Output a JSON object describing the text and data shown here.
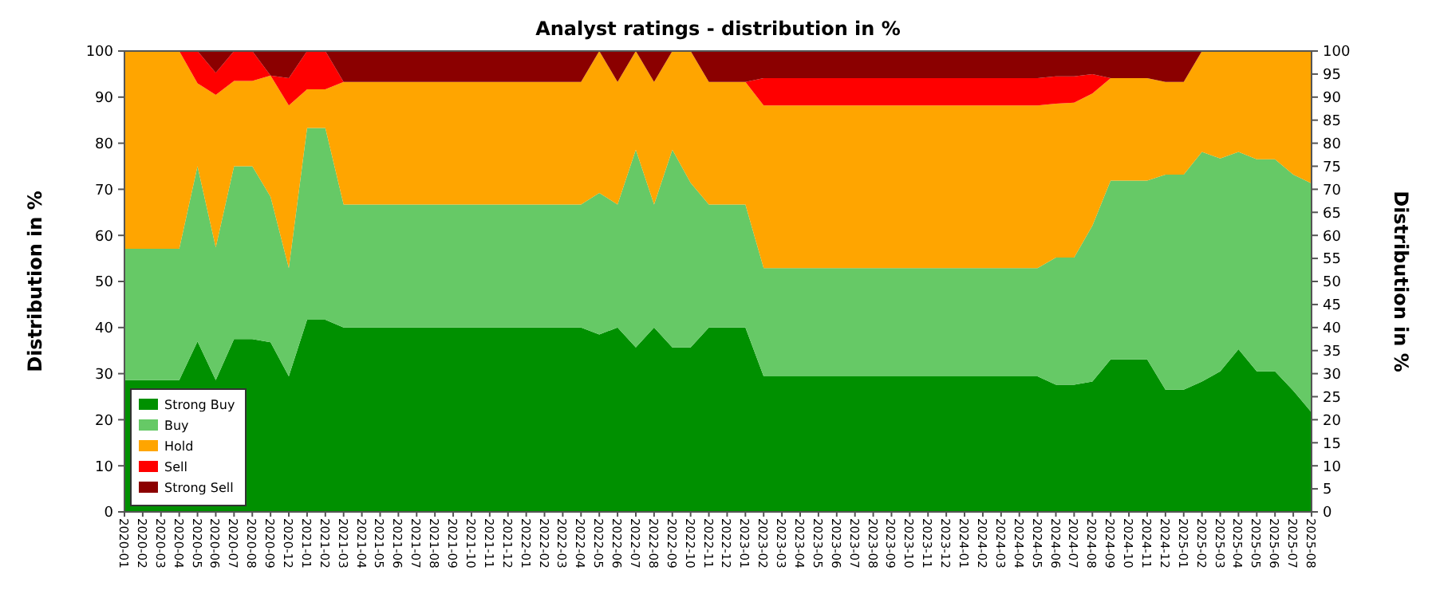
{
  "chart_data": {
    "type": "area",
    "stacked": true,
    "title": "Analyst ratings - distribution in %",
    "ylabel": "Distribution in %",
    "y2label": "Distribution in %",
    "categories": [
      "2020-01",
      "2020-02",
      "2020-03",
      "2020-04",
      "2020-05",
      "2020-06",
      "2020-07",
      "2020-08",
      "2020-09",
      "2020-12",
      "2021-01",
      "2021-02",
      "2021-03",
      "2021-04",
      "2021-05",
      "2021-06",
      "2021-07",
      "2021-08",
      "2021-09",
      "2021-10",
      "2021-11",
      "2021-12",
      "2022-01",
      "2022-02",
      "2022-03",
      "2022-04",
      "2022-05",
      "2022-06",
      "2022-07",
      "2022-08",
      "2022-09",
      "2022-10",
      "2022-11",
      "2022-12",
      "2023-01",
      "2023-02",
      "2023-03",
      "2023-04",
      "2023-05",
      "2023-06",
      "2023-07",
      "2023-08",
      "2023-09",
      "2023-10",
      "2023-11",
      "2023-12",
      "2024-01",
      "2024-02",
      "2024-03",
      "2024-04",
      "2024-05",
      "2024-06",
      "2024-07",
      "2024-08",
      "2024-09",
      "2024-10",
      "2024-11",
      "2024-12",
      "2025-01",
      "2025-02",
      "2025-03",
      "2025-04",
      "2025-05",
      "2025-06",
      "2025-07",
      "2025-08"
    ],
    "series": [
      {
        "name": "Strong Buy",
        "color": "#009000",
        "values": [
          28.6,
          28.6,
          28.6,
          28.6,
          37,
          28.6,
          37.5,
          37.5,
          36.8,
          29.4,
          41.7,
          41.7,
          40,
          40,
          40,
          40,
          40,
          40,
          40,
          40,
          40,
          40,
          40,
          40,
          40,
          40,
          38.5,
          40,
          35.7,
          40,
          35.7,
          35.7,
          40,
          40,
          40,
          29.4,
          29.4,
          29.4,
          29.4,
          29.4,
          29.4,
          29.4,
          29.4,
          29.4,
          29.4,
          29.4,
          29.4,
          29.4,
          29.4,
          29.4,
          29.4,
          27.6,
          27.6,
          28.3,
          33.1,
          33.1,
          33.1,
          26.5,
          26.5,
          28.3,
          30.5,
          35.3,
          30.5,
          30.5,
          26.3,
          21.6
        ]
      },
      {
        "name": "Buy",
        "color": "#66c966",
        "values": [
          28.5,
          28.5,
          28.5,
          28.5,
          38,
          28.8,
          37.5,
          37.5,
          31.6,
          23.5,
          41.6,
          41.6,
          26.7,
          26.7,
          26.7,
          26.7,
          26.7,
          26.7,
          26.7,
          26.7,
          26.7,
          26.7,
          26.7,
          26.7,
          26.7,
          26.7,
          30.7,
          26.7,
          42.9,
          26.7,
          42.9,
          35.7,
          26.7,
          26.7,
          26.7,
          23.5,
          23.5,
          23.5,
          23.5,
          23.5,
          23.5,
          23.5,
          23.5,
          23.5,
          23.5,
          23.5,
          23.5,
          23.5,
          23.5,
          23.5,
          23.5,
          27.6,
          27.6,
          33.8,
          38.8,
          38.8,
          38.8,
          46.7,
          46.7,
          49.8,
          46.2,
          42.8,
          46,
          46,
          46.9,
          49.7
        ]
      },
      {
        "name": "Hold",
        "color": "#ffa500",
        "values": [
          42.9,
          42.9,
          42.9,
          42.9,
          18,
          33.1,
          18.5,
          18.5,
          26.3,
          35.3,
          8.4,
          8.4,
          26.6,
          26.6,
          26.6,
          26.6,
          26.6,
          26.6,
          26.6,
          26.6,
          26.6,
          26.6,
          26.6,
          26.6,
          26.6,
          26.6,
          30.8,
          26.6,
          21.4,
          26.6,
          21.4,
          28.6,
          26.6,
          26.6,
          26.6,
          35.3,
          35.3,
          35.3,
          35.3,
          35.3,
          35.3,
          35.3,
          35.3,
          35.3,
          35.3,
          35.3,
          35.3,
          35.3,
          35.3,
          35.3,
          35.3,
          33.4,
          33.6,
          28.7,
          22.2,
          22.2,
          22.2,
          20.1,
          20.1,
          21.9,
          23.3,
          21.9,
          23.5,
          23.5,
          26.8,
          28.7
        ]
      },
      {
        "name": "Sell",
        "color": "#ff0000",
        "values": [
          0,
          0,
          0,
          0,
          7,
          4.8,
          6.5,
          6.5,
          0,
          5.9,
          8.3,
          8.3,
          0,
          0,
          0,
          0,
          0,
          0,
          0,
          0,
          0,
          0,
          0,
          0,
          0,
          0,
          0,
          0,
          0,
          0,
          0,
          0,
          0,
          0,
          0,
          5.9,
          5.9,
          5.9,
          5.9,
          5.9,
          5.9,
          5.9,
          5.9,
          5.9,
          5.9,
          5.9,
          5.9,
          5.9,
          5.9,
          5.9,
          5.9,
          5.9,
          5.7,
          4.2,
          0,
          0,
          0,
          0,
          0,
          0,
          0,
          0,
          0,
          0,
          0,
          0
        ]
      },
      {
        "name": "Strong Sell",
        "color": "#8b0000",
        "values": [
          0,
          0,
          0,
          0,
          0,
          4.7,
          0,
          0,
          5.3,
          5.9,
          0,
          0,
          6.7,
          6.7,
          6.7,
          6.7,
          6.7,
          6.7,
          6.7,
          6.7,
          6.7,
          6.7,
          6.7,
          6.7,
          6.7,
          6.7,
          0,
          6.7,
          0,
          6.7,
          0,
          0,
          6.7,
          6.7,
          6.7,
          5.9,
          5.9,
          5.9,
          5.9,
          5.9,
          5.9,
          5.9,
          5.9,
          5.9,
          5.9,
          5.9,
          5.9,
          5.9,
          5.9,
          5.9,
          5.9,
          5.5,
          5.5,
          5.0,
          5.9,
          5.9,
          5.9,
          6.7,
          6.7,
          0,
          0,
          0,
          0,
          0,
          0,
          0
        ]
      }
    ],
    "ylim": [
      0,
      100
    ],
    "yticks": [
      0,
      10,
      20,
      30,
      40,
      50,
      60,
      70,
      80,
      90,
      100
    ],
    "y2lim": [
      0,
      100
    ],
    "y2ticks": [
      0,
      5,
      10,
      15,
      20,
      25,
      30,
      35,
      40,
      45,
      50,
      55,
      60,
      65,
      70,
      75,
      80,
      85,
      90,
      95,
      100
    ],
    "legend": "bottom left"
  }
}
